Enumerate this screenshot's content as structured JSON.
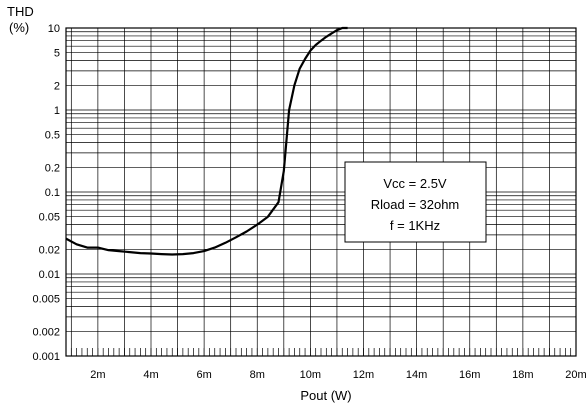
{
  "chart_data": {
    "type": "line",
    "ylabel": "THD",
    "ylabel_unit": "(%)",
    "xlabel": "Pout (W)",
    "yscale": "log",
    "ylim": [
      0.001,
      10
    ],
    "xlim": [
      0.0008,
      0.02
    ],
    "grid": true,
    "y_ticks": [
      {
        "value": 10,
        "label": "10"
      },
      {
        "value": 5,
        "label": "5"
      },
      {
        "value": 2,
        "label": "2"
      },
      {
        "value": 1,
        "label": "1"
      },
      {
        "value": 0.5,
        "label": "0.5"
      },
      {
        "value": 0.2,
        "label": "0.2"
      },
      {
        "value": 0.1,
        "label": "0.1"
      },
      {
        "value": 0.05,
        "label": "0.05"
      },
      {
        "value": 0.02,
        "label": "0.02"
      },
      {
        "value": 0.01,
        "label": "0.01"
      },
      {
        "value": 0.005,
        "label": "0.005"
      },
      {
        "value": 0.002,
        "label": "0.002"
      },
      {
        "value": 0.001,
        "label": "0.001"
      }
    ],
    "x_ticks": [
      {
        "value": 0.002,
        "label": "2m"
      },
      {
        "value": 0.004,
        "label": "4m"
      },
      {
        "value": 0.006,
        "label": "6m"
      },
      {
        "value": 0.008,
        "label": "8m"
      },
      {
        "value": 0.01,
        "label": "10m"
      },
      {
        "value": 0.012,
        "label": "12m"
      },
      {
        "value": 0.014,
        "label": "14m"
      },
      {
        "value": 0.016,
        "label": "16m"
      },
      {
        "value": 0.018,
        "label": "18m"
      },
      {
        "value": 0.02,
        "label": "20m"
      }
    ],
    "annotation": [
      "Vcc = 2.5V",
      "Rload = 32ohm",
      "f = 1KHz"
    ],
    "annotation_position": "right-center",
    "series": [
      {
        "x": [
          0.0008,
          0.0012,
          0.0016,
          0.002,
          0.0024,
          0.0028,
          0.0032,
          0.0036,
          0.004,
          0.0044,
          0.0048,
          0.0052,
          0.0056,
          0.006,
          0.0064,
          0.0068,
          0.0072,
          0.0076,
          0.008,
          0.0084,
          0.0088,
          0.009,
          0.0092,
          0.0094,
          0.0096,
          0.0098,
          0.01,
          0.0102,
          0.0104,
          0.0106,
          0.0108,
          0.011,
          0.0112,
          0.0114
        ],
        "y": [
          0.027,
          0.023,
          0.021,
          0.021,
          0.0195,
          0.019,
          0.0185,
          0.018,
          0.0178,
          0.0175,
          0.0173,
          0.0175,
          0.018,
          0.019,
          0.021,
          0.024,
          0.028,
          0.033,
          0.04,
          0.05,
          0.075,
          0.18,
          1.0,
          2.0,
          3.2,
          4.2,
          5.3,
          6.2,
          7.0,
          7.8,
          8.6,
          9.4,
          10.0,
          10.0
        ]
      }
    ]
  }
}
